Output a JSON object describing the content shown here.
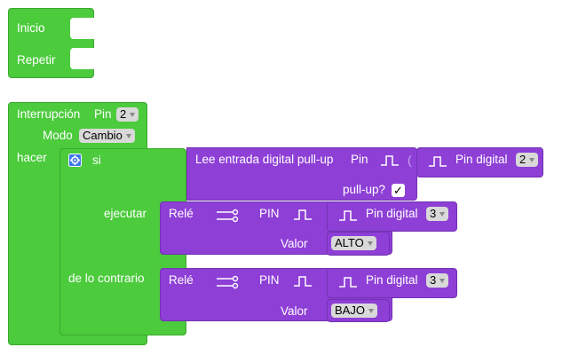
{
  "colors": {
    "control_green": "#4ccb3d",
    "io_purple": "#8e3fd6"
  },
  "blocks": {
    "setup": {
      "inicio_label": "Inicio",
      "repetir_label": "Repetir"
    },
    "interrupt": {
      "title_label": "Interrupción",
      "pin_label": "Pin",
      "pin_value": "2",
      "modo_label": "Modo",
      "modo_value": "Cambio",
      "hacer_label": "hacer"
    },
    "if_block": {
      "si_label": "si",
      "ejecutar_label": "ejecutar",
      "else_label": "de lo contrario"
    },
    "read_input": {
      "label": "Lee entrada digital pull-up",
      "pin_label": "Pin",
      "pin_digital_label": "Pin digital",
      "pin_value": "2",
      "pullup_label": "pull-up?",
      "pullup_checked": "✓"
    },
    "relay_1": {
      "rele_label": "Relé",
      "pin_label": "PIN",
      "pin_digital_label": "Pin digital",
      "pin_value": "3",
      "valor_label": "Valor",
      "valor_value": "ALTO"
    },
    "relay_2": {
      "rele_label": "Relé",
      "pin_label": "PIN",
      "pin_digital_label": "Pin digital",
      "pin_value": "3",
      "valor_label": "Valor",
      "valor_value": "BAJO"
    }
  }
}
